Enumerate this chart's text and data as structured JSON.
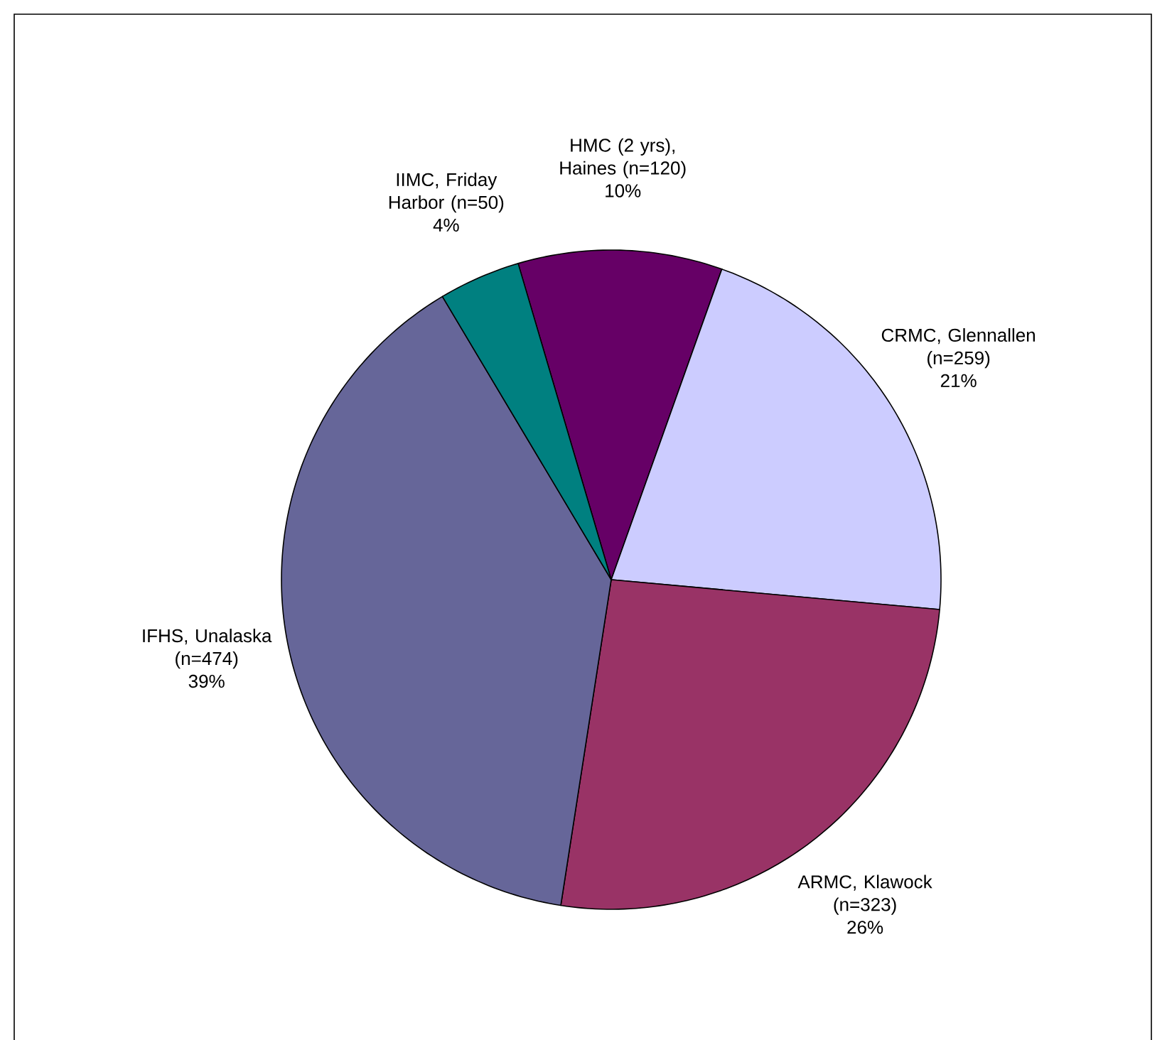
{
  "chart_data": {
    "type": "pie",
    "categories": [
      "HMC (2 yrs), Haines (n=120)",
      "CRMC, Glennallen (n=259)",
      "ARMC, Klawock (n=323)",
      "IFHS, Unalaska (n=474)",
      "IIMC, Friday Harbor (n=50)"
    ],
    "values": [
      10,
      21,
      26,
      39,
      4
    ],
    "value_labels": [
      "10%",
      "21%",
      "26%",
      "39%",
      "4%"
    ],
    "colors": [
      "#660066",
      "#ccccff",
      "#993366",
      "#666699",
      "#008080"
    ]
  }
}
